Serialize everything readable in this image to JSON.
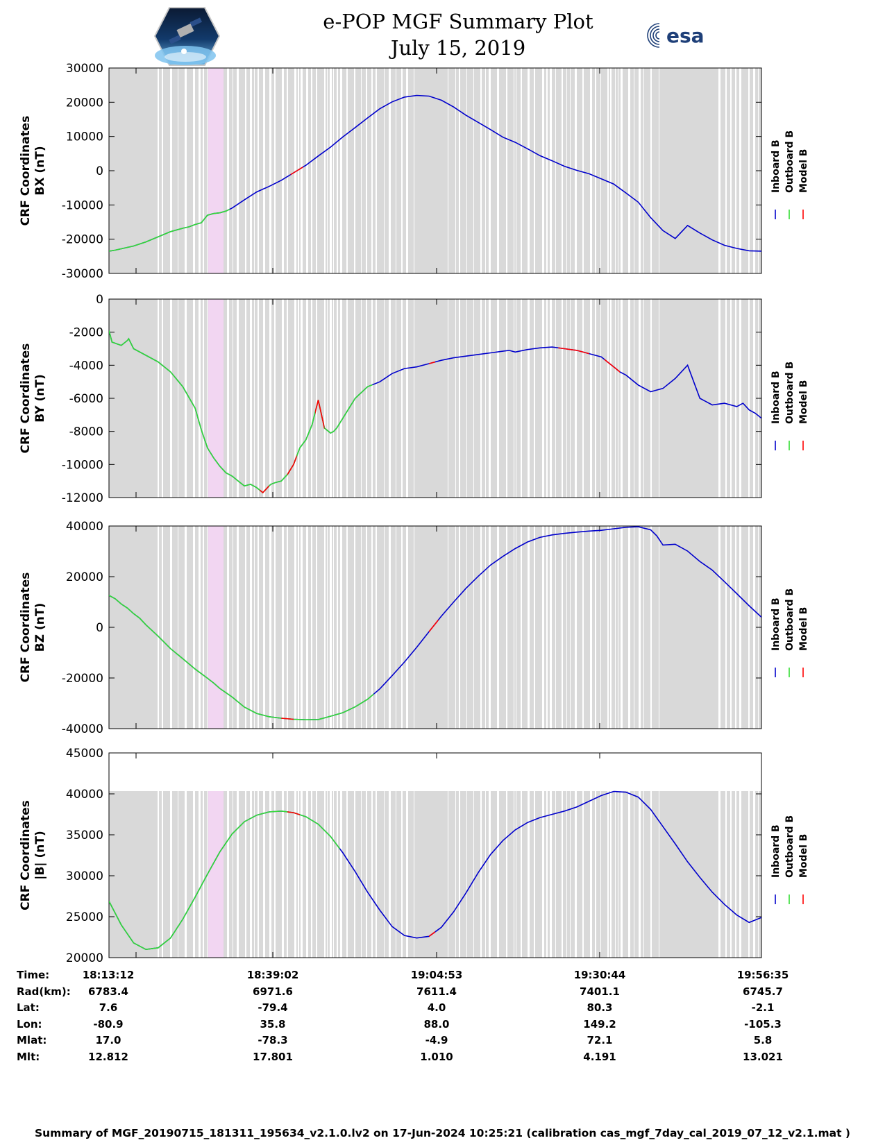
{
  "title": {
    "line1": "e-POP MGF Summary Plot",
    "line2": "July 15, 2019"
  },
  "logos": {
    "left": "cassiope-mission-logo",
    "right": "esa-logo",
    "right_text": "esa",
    "esa_color": "#1e3f78"
  },
  "colors": {
    "inboard": "#0000cc",
    "outboard": "#33dd33",
    "model": "#ff0000",
    "band_gray": "#d9d9d9",
    "band_pink": "#f2d6f2"
  },
  "legend": {
    "items": [
      "Inboard B",
      "Outboard B",
      "Model B"
    ]
  },
  "chart_data": [
    {
      "type": "line",
      "ylabel_line1": "CRF Coordinates",
      "ylabel_line2": "BX (nT)",
      "ylim": [
        -30000,
        30000
      ],
      "yticks": [
        "30000",
        "20000",
        "10000",
        "0",
        "-10000",
        "-20000",
        "-30000"
      ],
      "outboard_end_min": 19.6,
      "x": [
        0,
        1,
        2,
        4,
        6,
        8,
        10,
        12,
        13,
        14,
        15,
        16,
        17,
        18,
        19,
        20,
        22,
        24,
        26,
        28,
        30,
        32,
        34,
        36,
        38,
        40,
        42,
        44,
        46,
        48,
        50,
        52,
        54,
        56,
        58,
        60,
        62,
        64,
        66,
        68,
        70,
        72,
        74,
        76,
        78,
        80,
        82,
        83,
        84,
        86,
        88,
        90,
        92,
        94,
        96,
        98,
        100,
        102,
        104,
        106
      ],
      "series": [
        {
          "name": "Inboard B",
          "values": [
            -23500,
            -23200,
            -22800,
            -22000,
            -20800,
            -19300,
            -17800,
            -16800,
            -16400,
            -15700,
            -15200,
            -13000,
            -12500,
            -12300,
            -11800,
            -10900,
            -8500,
            -6200,
            -4600,
            -2800,
            -600,
            1600,
            4300,
            6900,
            9900,
            12600,
            15400,
            18100,
            20100,
            21500,
            22000,
            21800,
            20600,
            18600,
            16200,
            14100,
            12000,
            9800,
            8300,
            6400,
            4400,
            2900,
            1300,
            100,
            -900,
            -2400,
            -3900,
            -5200,
            -6500,
            -9200,
            -13700,
            -17500,
            -19800,
            -16000,
            -18200,
            -20200,
            -21800,
            -22700,
            -23400,
            -23500
          ]
        }
      ],
      "model_marks": [
        {
          "from_min": 29.5,
          "to_min": 31.5
        }
      ]
    },
    {
      "type": "line",
      "ylabel_line1": "CRF Coordinates",
      "ylabel_line2": "BY (nT)",
      "ylim": [
        -12000,
        0
      ],
      "yticks": [
        "0",
        "-2000",
        "-4000",
        "-6000",
        "-8000",
        "-10000",
        "-12000"
      ],
      "outboard_end_min": 42.8,
      "x": [
        0,
        0.5,
        2,
        3,
        3.2,
        4,
        6,
        8,
        10,
        12,
        14,
        15,
        16,
        17,
        18,
        19,
        20,
        21,
        22,
        23,
        24,
        25,
        26,
        26.3,
        27,
        28,
        29,
        30,
        31,
        32,
        33,
        34,
        35,
        36,
        36.5,
        37,
        37.5,
        38,
        39,
        40,
        42,
        44,
        46,
        48,
        50,
        52,
        54,
        56,
        58,
        60,
        62,
        64,
        65,
        66,
        68,
        70,
        72,
        74,
        76,
        78,
        80,
        81,
        82,
        83,
        84,
        86,
        88,
        90,
        92,
        94,
        96,
        98,
        100,
        102,
        103,
        104,
        105,
        106
      ],
      "series": [
        {
          "name": "Inboard B",
          "values": [
            -1900,
            -2600,
            -2800,
            -2500,
            -2400,
            -3000,
            -3400,
            -3800,
            -4400,
            -5300,
            -6600,
            -7900,
            -9000,
            -9600,
            -10100,
            -10500,
            -10700,
            -11000,
            -11300,
            -11200,
            -11400,
            -11700,
            -11300,
            -11200,
            -11100,
            -11000,
            -10600,
            -10000,
            -9000,
            -8500,
            -7600,
            -6100,
            -7800,
            -8100,
            -8000,
            -7800,
            -7500,
            -7200,
            -6600,
            -6000,
            -5300,
            -5000,
            -4500,
            -4200,
            -4100,
            -3900,
            -3700,
            -3550,
            -3450,
            -3350,
            -3250,
            -3150,
            -3100,
            -3200,
            -3050,
            -2950,
            -2900,
            -3000,
            -3100,
            -3300,
            -3500,
            -3800,
            -4100,
            -4400,
            -4600,
            -5200,
            -5600,
            -5400,
            -4800,
            -4000,
            -6000,
            -6400,
            -6300,
            -6500,
            -6300,
            -6700,
            -6900,
            -7200
          ]
        },
        {
          "name": "Outboard B",
          "values": [
            -1900,
            -2600,
            -2800,
            -2500,
            -2400,
            -3000,
            -3400,
            -3800,
            -4400,
            -5300,
            -6600,
            -7900,
            -9000,
            -9600,
            -10100,
            -10500,
            -10700,
            -11000,
            -11300,
            -11200,
            -11400,
            -11700,
            -11300,
            -11200,
            -11100,
            -11000,
            -10600,
            -10000,
            -9000,
            -8500,
            -7600,
            -6100,
            -7800,
            -8100,
            -8000,
            -7800,
            -7500,
            -7200,
            -6600,
            -6000,
            -5300,
            -5000,
            -4500,
            -4200,
            -4100,
            -3900,
            -3700,
            -3550,
            -3450,
            -3350,
            -3250,
            -3150,
            -3100,
            -3200,
            -3050,
            -2950,
            -2900,
            -3000,
            -3100,
            -3300,
            -3500,
            -3800,
            -4100,
            -4400,
            -4600,
            -5200,
            -5600,
            -5400,
            -4800,
            -4000,
            -6000,
            -6400,
            -6300,
            -6500,
            -6300,
            -6700,
            -6900,
            -7200
          ]
        }
      ],
      "model_marks": [
        {
          "from_min": 24.5,
          "to_min": 26
        },
        {
          "from_min": 29,
          "to_min": 30.5
        },
        {
          "from_min": 33.5,
          "to_min": 35
        },
        {
          "from_min": 52,
          "to_min": 53
        },
        {
          "from_min": 73,
          "to_min": 78
        },
        {
          "from_min": 80.5,
          "to_min": 83
        }
      ]
    },
    {
      "type": "line",
      "ylabel_line1": "CRF Coordinates",
      "ylabel_line2": "BZ (nT)",
      "ylim": [
        -40000,
        40000
      ],
      "yticks": [
        "40000",
        "20000",
        "0",
        "-20000",
        "-40000"
      ],
      "outboard_end_min": 43,
      "x": [
        0,
        1,
        2,
        3,
        4,
        5,
        6,
        8,
        10,
        12,
        14,
        16,
        17,
        18,
        20,
        22,
        24,
        26,
        28,
        30,
        32,
        34,
        36,
        38,
        40,
        42,
        44,
        46,
        48,
        50,
        52,
        54,
        56,
        58,
        60,
        62,
        64,
        66,
        68,
        70,
        72,
        74,
        76,
        78,
        80,
        82,
        84,
        86,
        88,
        89,
        90,
        92,
        94,
        96,
        98,
        100,
        102,
        104,
        106
      ],
      "series": [
        {
          "name": "Inboard B",
          "values": [
            12600,
            11300,
            9200,
            7600,
            5400,
            3600,
            1000,
            -3500,
            -8400,
            -12400,
            -16500,
            -20100,
            -22000,
            -24100,
            -27500,
            -31500,
            -34000,
            -35300,
            -35900,
            -36300,
            -36500,
            -36400,
            -35100,
            -33700,
            -31400,
            -28400,
            -24300,
            -19100,
            -13700,
            -7900,
            -1700,
            4400,
            10000,
            15400,
            20200,
            24600,
            28000,
            31100,
            33700,
            35500,
            36500,
            37100,
            37600,
            38000,
            38300,
            38900,
            39500,
            39700,
            38500,
            36100,
            32500,
            32800,
            30100,
            26000,
            22600,
            18000,
            13300,
            8500,
            4000
          ]
        }
      ],
      "model_marks": [
        {
          "from_min": 28,
          "to_min": 30
        },
        {
          "from_min": 52,
          "to_min": 53.5
        }
      ]
    },
    {
      "type": "line",
      "ylabel_line1": "CRF Coordinates",
      "ylabel_line2": "|B| (nT)",
      "ylim": [
        20000,
        45000
      ],
      "yticks": [
        "45000",
        "40000",
        "35000",
        "30000",
        "25000",
        "20000"
      ],
      "outboard_end_min": 37.5,
      "x": [
        0,
        2,
        4,
        6,
        8,
        10,
        12,
        14,
        16,
        18,
        20,
        22,
        24,
        26,
        28,
        30,
        32,
        34,
        36,
        38,
        40,
        42,
        44,
        46,
        48,
        50,
        52,
        54,
        56,
        58,
        60,
        62,
        64,
        66,
        68,
        70,
        72,
        74,
        76,
        78,
        80,
        82,
        84,
        86,
        88,
        90,
        92,
        94,
        96,
        98,
        100,
        102,
        104,
        106
      ],
      "series": [
        {
          "name": "Inboard B",
          "values": [
            26900,
            24000,
            21800,
            21000,
            21200,
            22400,
            24700,
            27400,
            30200,
            32900,
            35100,
            36600,
            37400,
            37800,
            37900,
            37700,
            37200,
            36300,
            34800,
            32800,
            30500,
            28000,
            25800,
            23800,
            22700,
            22400,
            22600,
            23700,
            25600,
            27900,
            30400,
            32600,
            34300,
            35600,
            36500,
            37100,
            37500,
            37900,
            38400,
            39100,
            39800,
            40300,
            40200,
            39600,
            38100,
            36000,
            33900,
            31700,
            29800,
            28000,
            26500,
            25200,
            24300,
            24900
          ]
        }
      ],
      "model_marks": [
        {
          "from_min": 29,
          "to_min": 31
        },
        {
          "from_min": 52,
          "to_min": 53
        }
      ]
    }
  ],
  "ephemeris": {
    "labels": [
      "Time:",
      "Rad(km):",
      "Lat:",
      "Lon:",
      "Mlat:",
      "Mlt:"
    ],
    "columns": [
      [
        "18:13:12",
        "6783.4",
        "7.6",
        "-80.9",
        "17.0",
        "12.812"
      ],
      [
        "18:39:02",
        "6971.6",
        "-79.4",
        "35.8",
        "-78.3",
        "17.801"
      ],
      [
        "19:04:53",
        "7611.4",
        "4.0",
        "88.0",
        "-4.9",
        "1.010"
      ],
      [
        "19:30:44",
        "7401.1",
        "80.3",
        "149.2",
        "72.1",
        "4.191"
      ],
      [
        "19:56:35",
        "6745.7",
        "-2.1",
        "-105.3",
        "5.8",
        "13.021"
      ]
    ]
  },
  "footer": "Summary of MGF_20190715_181311_195634_v2.1.0.lv2 on 17-Jun-2024 10:25:21 (calibration cas_mgf_7day_cal_2019_07_12_v2.1.mat )"
}
